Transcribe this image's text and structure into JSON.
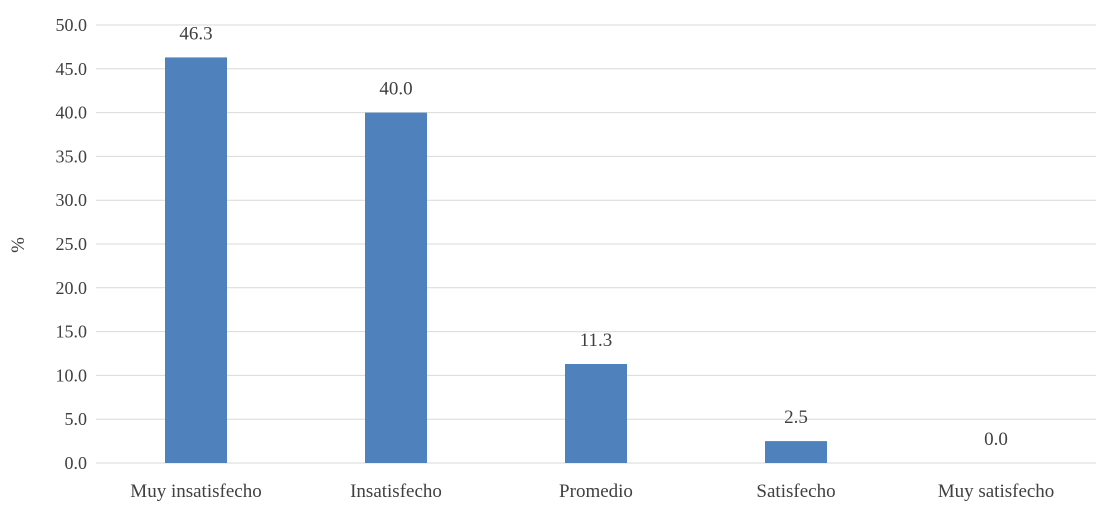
{
  "chart_data": {
    "type": "bar",
    "title": "",
    "xlabel": "",
    "ylabel": "%",
    "categories": [
      "Muy insatisfecho",
      "Insatisfecho",
      "Promedio",
      "Satisfecho",
      "Muy satisfecho"
    ],
    "values": [
      46.3,
      40.0,
      11.3,
      2.5,
      0.0
    ],
    "value_labels": [
      "46.3",
      "40.0",
      "11.3",
      "2.5",
      "0.0"
    ],
    "ylim": [
      0,
      50
    ],
    "yticks": [
      0,
      5,
      10,
      15,
      20,
      25,
      30,
      35,
      40,
      45,
      50
    ],
    "ytick_labels": [
      "0.0",
      "5.0",
      "10.0",
      "15.0",
      "20.0",
      "25.0",
      "30.0",
      "35.0",
      "40.0",
      "45.0",
      "50.0"
    ],
    "grid": true,
    "legend": "none",
    "colors": {
      "bar": "#4F81BD",
      "grid": "#D9D9D9",
      "text": "#404040"
    }
  }
}
